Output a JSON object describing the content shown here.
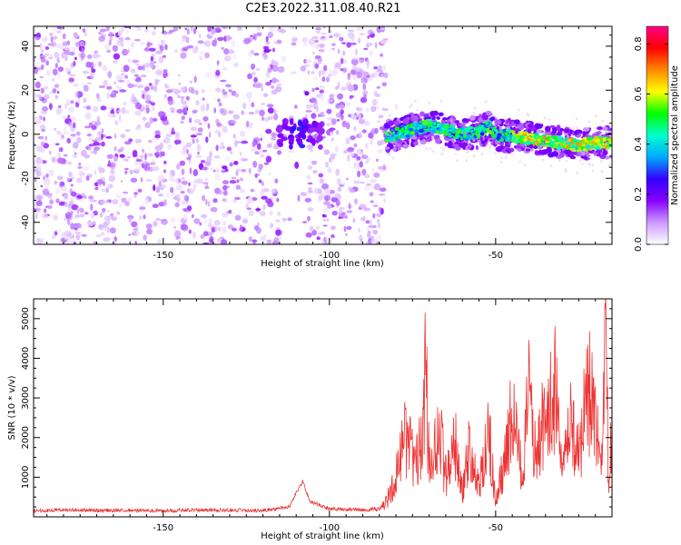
{
  "title": "C2E3.2022.311.08.40.R21",
  "chart_data": [
    {
      "type": "heatmap",
      "xlabel": "Height of straight line (km)",
      "ylabel": "Frequency (Hz)",
      "xlim": [
        -189,
        -15
      ],
      "ylim": [
        -50,
        49
      ],
      "xticks": [
        "-150",
        "-100",
        "-50"
      ],
      "yticks": [
        "-40",
        "-20",
        "0",
        "20",
        "40"
      ],
      "colorbar": {
        "label": "Normalized spectral amplitude",
        "range": [
          0.0,
          0.87
        ],
        "ticks": [
          "0.0",
          "0.2",
          "0.4",
          "0.6",
          "0.8"
        ],
        "colors": [
          "#ffffff",
          "#cc99ff",
          "#8800ff",
          "#3300ff",
          "#00aaff",
          "#00ffcc",
          "#00ff00",
          "#ffff00",
          "#ff8800",
          "#ff0000",
          "#ff0088"
        ]
      },
      "signal_band": {
        "x": [
          -83,
          -75,
          -70,
          -65,
          -60,
          -55,
          -52,
          -50,
          -45,
          -40,
          -35,
          -30,
          -25,
          -20,
          -15
        ],
        "frequency": [
          -1,
          2,
          4,
          2,
          0,
          1,
          4,
          0,
          -1,
          -2,
          -3,
          -4,
          -5,
          -4,
          -4
        ]
      },
      "noise_region_x": [
        -189,
        -83
      ],
      "grid": false
    },
    {
      "type": "line",
      "xlabel": "Height of straight line (km)",
      "ylabel": "SNR (10 * v/v)",
      "xlim": [
        -189,
        -15
      ],
      "ylim": [
        0,
        5500
      ],
      "xticks": [
        "-150",
        "-100",
        "-50"
      ],
      "yticks": [
        "1000",
        "2000",
        "3000",
        "4000",
        "5000"
      ],
      "color": "#ee3333",
      "series": [
        {
          "x": [
            -189,
            -180,
            -170,
            -160,
            -150,
            -140,
            -130,
            -120,
            -112,
            -110,
            -108,
            -106,
            -100,
            -90,
            -85,
            -83,
            -80,
            -77,
            -75,
            -72,
            -71,
            -70,
            -67,
            -65,
            -62,
            -60,
            -58,
            -55,
            -52,
            -50,
            -47,
            -45,
            -42,
            -40,
            -38,
            -35,
            -32,
            -30,
            -27,
            -25,
            -22,
            -20,
            -18,
            -17,
            -16,
            -15
          ],
          "y": [
            150,
            180,
            160,
            170,
            150,
            180,
            170,
            160,
            250,
            600,
            900,
            400,
            200,
            180,
            200,
            350,
            1000,
            2000,
            1500,
            1700,
            3800,
            1200,
            2200,
            1000,
            1800,
            600,
            1700,
            700,
            2100,
            400,
            1500,
            2700,
            1000,
            3100,
            1500,
            2600,
            3200,
            1000,
            2400,
            1500,
            3300,
            2200,
            1200,
            5500,
            400,
            3000
          ]
        }
      ],
      "grid": false
    }
  ]
}
